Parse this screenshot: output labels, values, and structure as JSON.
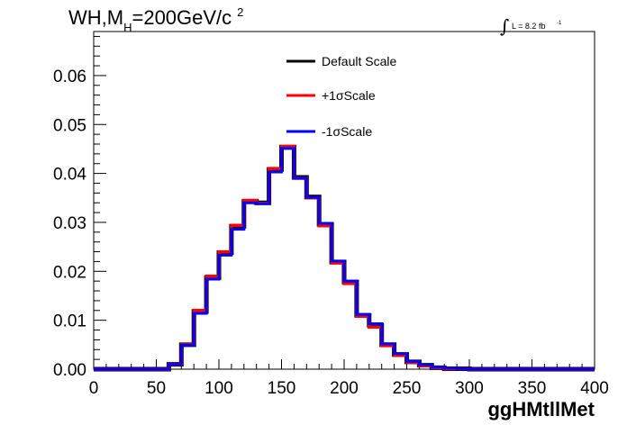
{
  "chart_data": {
    "type": "line",
    "title": {
      "text": "WH,M",
      "subscript": "H",
      "value": "=200GeV/c",
      "superscript": "2"
    },
    "lumi": {
      "integral": "∫",
      "text": "L = 8.2 fb",
      "superscript": "-1"
    },
    "xlabel": "ggHMtllMet",
    "ylabel": "",
    "xlim": [
      0,
      400
    ],
    "ylim": [
      0,
      0.069
    ],
    "x_ticks": [
      "0",
      "50",
      "100",
      "150",
      "200",
      "250",
      "300",
      "350",
      "400"
    ],
    "y_ticks": [
      "0.00",
      "0.01",
      "0.02",
      "0.03",
      "0.04",
      "0.05",
      "0.06"
    ],
    "legend_position": "top-center",
    "bin_edges": [
      0,
      10,
      20,
      30,
      40,
      50,
      60,
      70,
      80,
      90,
      100,
      110,
      120,
      130,
      140,
      150,
      160,
      170,
      180,
      190,
      200,
      210,
      220,
      230,
      240,
      250,
      260,
      270,
      280,
      290,
      300,
      310,
      320,
      330,
      340,
      350,
      360,
      370,
      380,
      390,
      400
    ],
    "series": [
      {
        "name": "Default Scale",
        "color": "#000000",
        "values": [
          0,
          0,
          0,
          0,
          0,
          0,
          0.001,
          0.005,
          0.0118,
          0.0187,
          0.0238,
          0.0292,
          0.0343,
          0.034,
          0.0408,
          0.0454,
          0.0392,
          0.0352,
          0.0296,
          0.0219,
          0.0178,
          0.011,
          0.009,
          0.005,
          0.003,
          0.0015,
          0.0008,
          0.0003,
          0.0001,
          0.0001,
          0,
          0,
          0,
          0,
          0,
          0,
          0,
          0,
          0,
          0
        ]
      },
      {
        "name": "+1σScale",
        "color": "#ff0000",
        "values": [
          0,
          0,
          0,
          0,
          0,
          0,
          0.001,
          0.005,
          0.012,
          0.019,
          0.024,
          0.0294,
          0.0345,
          0.0339,
          0.041,
          0.0455,
          0.039,
          0.035,
          0.0293,
          0.0217,
          0.0175,
          0.0108,
          0.0086,
          0.0048,
          0.0028,
          0.0014,
          0.0007,
          0.0003,
          0.0001,
          0.0001,
          0,
          0,
          0,
          0,
          0,
          0,
          0,
          0,
          0,
          0
        ]
      },
      {
        "name": "-1σScale",
        "color": "#0000ff",
        "values": [
          0,
          0,
          0,
          0,
          0,
          0,
          0.001,
          0.0049,
          0.0114,
          0.0184,
          0.0233,
          0.0286,
          0.034,
          0.0338,
          0.0403,
          0.0451,
          0.039,
          0.0351,
          0.0298,
          0.0221,
          0.018,
          0.0112,
          0.0093,
          0.0052,
          0.0032,
          0.0016,
          0.0009,
          0.0004,
          0.0002,
          0.0001,
          0,
          0,
          0,
          0,
          0,
          0,
          0,
          0,
          0,
          0
        ]
      }
    ]
  }
}
